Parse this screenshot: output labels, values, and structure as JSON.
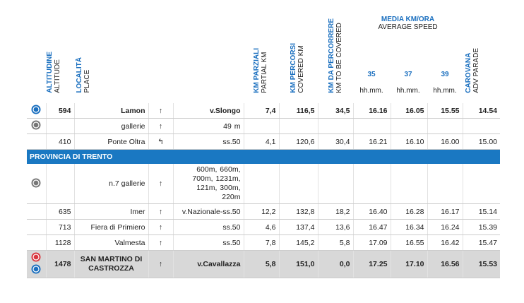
{
  "header": {
    "columns": [
      {
        "title": "ALTITUDINE",
        "subtitle": "ALTITUDE"
      },
      {
        "title": "LOCALITÀ",
        "subtitle": "PLACE"
      },
      {
        "title": "KM PARZIALI",
        "subtitle": "PARTIAL KM"
      },
      {
        "title": "KM PERCORSI",
        "subtitle": "COVERED KM"
      },
      {
        "title": "KM DA PERCORRERE",
        "subtitle": "KM TO BE COVERED"
      },
      {
        "title": "CAROVANA",
        "subtitle": "ADV PARADE"
      }
    ],
    "speed": {
      "title": "MEDIA KM/ORA",
      "subtitle": "AVERAGE SPEED",
      "columns": [
        {
          "title": "35",
          "unit": "hh.mm."
        },
        {
          "title": "37",
          "unit": "hh.mm."
        },
        {
          "title": "39",
          "unit": "hh.mm."
        }
      ]
    }
  },
  "table": {
    "rows": [
      {
        "alt": "594",
        "place": "Lamon",
        "dir": "↑",
        "road": "v.Slongo",
        "km_partial": "7,4",
        "km_covered": "116,5",
        "km_left": "34,5",
        "t35": "16.16",
        "t37": "16.05",
        "t39": "15.55",
        "adv": "14.54"
      },
      {
        "place": "gallerie",
        "dir": "↑",
        "road": "49 m"
      },
      {
        "alt": "410",
        "place": "Ponte Oltra",
        "dir": "↰",
        "road": "ss.50",
        "km_partial": "4,1",
        "km_covered": "120,6",
        "km_left": "30,4",
        "t35": "16.21",
        "t37": "16.10",
        "t39": "16.00",
        "adv": "15.00"
      },
      {
        "section": "PROVINCIA DI TRENTO"
      },
      {
        "place": "n.7 gallerie",
        "dir": "↑",
        "road": "600m, 660m, 700m, 1231m, 121m, 300m, 220m"
      },
      {
        "alt": "635",
        "place": "Imer",
        "dir": "↑",
        "road": "v.Nazionale-ss.50",
        "km_partial": "12,2",
        "km_covered": "132,8",
        "km_left": "18,2",
        "t35": "16.40",
        "t37": "16.28",
        "t39": "16.17",
        "adv": "15.14"
      },
      {
        "alt": "713",
        "place": "Fiera di Primiero",
        "dir": "↑",
        "road": "ss.50",
        "km_partial": "4,6",
        "km_covered": "137,4",
        "km_left": "13,6",
        "t35": "16.47",
        "t37": "16.34",
        "t39": "16.24",
        "adv": "15.39"
      },
      {
        "alt": "1128",
        "place": "Valmesta",
        "dir": "↑",
        "road": "ss.50",
        "km_partial": "7,8",
        "km_covered": "145,2",
        "km_left": "5,8",
        "t35": "17.09",
        "t37": "16.55",
        "t39": "16.42",
        "adv": "15.47"
      },
      {
        "alt": "1478",
        "place": "SAN MARTINO DI CASTROZZA",
        "dir": "↑",
        "road": "v.Cavallazza",
        "km_partial": "5,8",
        "km_covered": "151,0",
        "km_left": "0,0",
        "t35": "17.25",
        "t37": "17.10",
        "t39": "16.56",
        "adv": "15.53"
      }
    ]
  }
}
